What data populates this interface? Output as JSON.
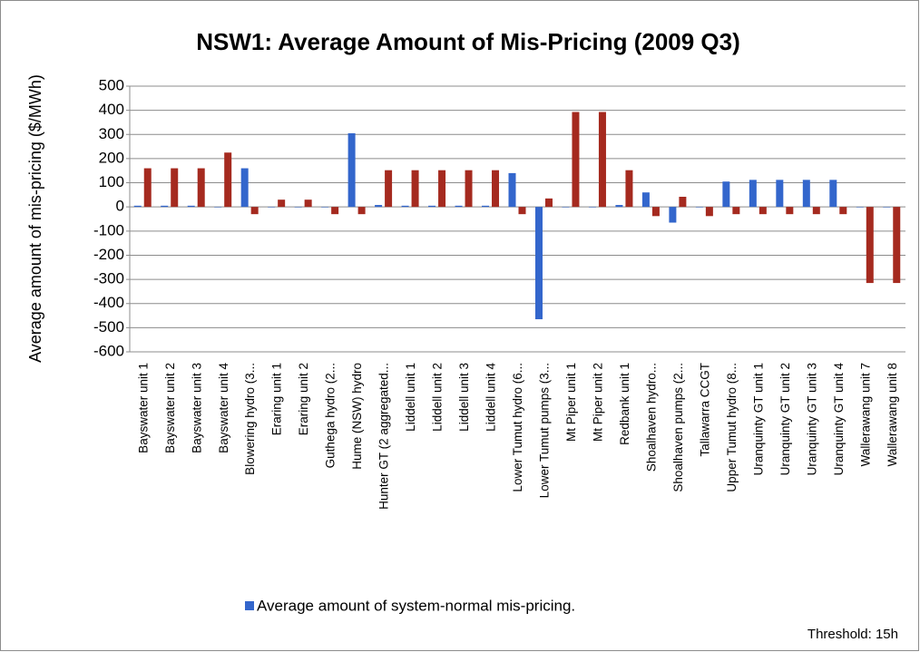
{
  "chart_data": {
    "type": "bar",
    "title": "NSW1: Average Amount of Mis-Pricing (2009 Q3)",
    "y_label": "Average amount of mis-pricing ($/MWh)",
    "annotation": "Threshold:  15h",
    "categories": [
      "Bayswater unit 1",
      "Bayswater unit 2",
      "Bayswater unit 3",
      "Bayswater unit 4",
      "Blowering hydro (3...",
      "Eraring unit 1",
      "Eraring unit 2",
      "Guthega hydro (2...",
      "Hume (NSW) hydro",
      "Hunter GT (2 aggregated...",
      "Liddell unit 1",
      "Liddell unit 2",
      "Liddell unit 3",
      "Liddell unit 4",
      "Lower Tumut hydro (6...",
      "Lower Tumut pumps (3...",
      "Mt Piper unit 1",
      "Mt Piper unit 2",
      "Redbank unit 1",
      "Shoalhaven hydro...",
      "Shoalhaven pumps (2...",
      "Tallawarra CCGT",
      "Upper Tumut hydro (8...",
      "Uranquinty GT unit 1",
      "Uranquinty GT unit 2",
      "Uranquinty GT unit 3",
      "Uranquinty GT unit 4",
      "Wallerawang unit 7",
      "Wallerawang unit 8"
    ],
    "series": [
      {
        "name": "Average amount of system-normal mis-pricing.",
        "color": "#3366cc",
        "values": [
          5,
          5,
          5,
          0,
          160,
          0,
          0,
          0,
          305,
          8,
          5,
          5,
          5,
          5,
          140,
          -465,
          0,
          0,
          8,
          60,
          -65,
          0,
          105,
          112,
          112,
          112,
          112,
          0,
          0
        ]
      },
      {
        "color": "#a52a1f",
        "values": [
          160,
          160,
          160,
          225,
          -30,
          30,
          30,
          -30,
          -30,
          152,
          152,
          152,
          152,
          152,
          -30,
          35,
          393,
          393,
          152,
          -38,
          42,
          -38,
          -30,
          -30,
          -30,
          -30,
          -30,
          -315,
          -315
        ]
      }
    ],
    "ylim": [
      -600,
      500
    ],
    "yticks": [
      -600,
      -500,
      -400,
      -300,
      -200,
      -100,
      0,
      100,
      200,
      300,
      400,
      500
    ],
    "grid": true
  }
}
